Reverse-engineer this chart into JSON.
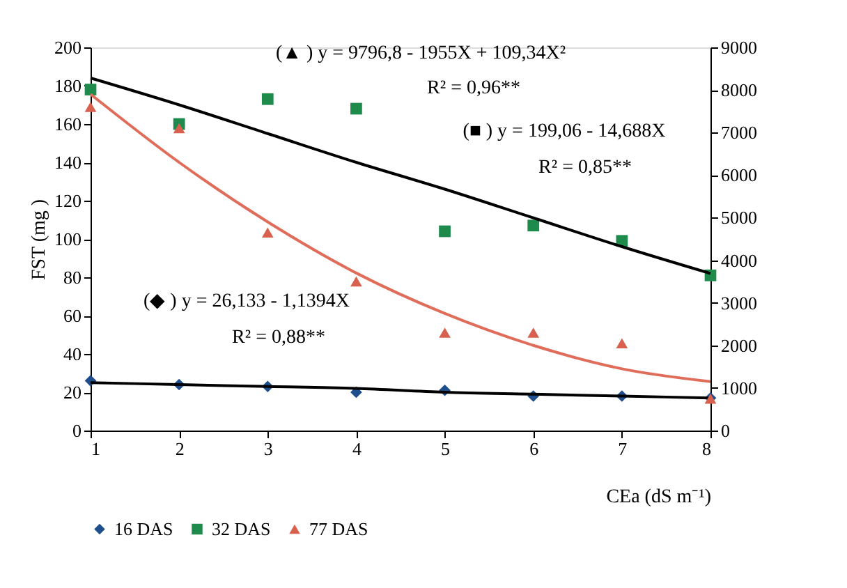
{
  "chart_data": {
    "type": "scatter",
    "ylabel": "FST (mg )",
    "xlabel": "CEa (dS m⁻¹)",
    "x": [
      1,
      2,
      3,
      4,
      5,
      6,
      7,
      8
    ],
    "xlim": [
      1,
      8
    ],
    "xticks": [
      1,
      2,
      3,
      4,
      5,
      6,
      7,
      8
    ],
    "ylim": [
      0,
      200
    ],
    "yticks": [
      0,
      20,
      40,
      60,
      80,
      100,
      120,
      140,
      160,
      180,
      200
    ],
    "y2lim": [
      0,
      9000
    ],
    "y2ticks": [
      0,
      1000,
      2000,
      3000,
      4000,
      5000,
      6000,
      7000,
      8000,
      9000
    ],
    "grid": false,
    "legend": "bottom left",
    "series": [
      {
        "type": "line",
        "color": "#000000",
        "marker": "none",
        "values": [
          25,
          24,
          23,
          22,
          20,
          19,
          18,
          17
        ]
      },
      {
        "type": "line",
        "color": "#000000",
        "marker": "none",
        "values": [
          184,
          170,
          155,
          140,
          126,
          111,
          96,
          82
        ]
      },
      {
        "type": "line",
        "axis": "y2",
        "color": "#e06c5a",
        "marker": "none",
        "values": [
          7900,
          6300,
          4900,
          3700,
          2750,
          2000,
          1450,
          1150
        ]
      },
      {
        "name": "16 DAS",
        "color": "#1f4e8c",
        "marker": "diamond",
        "values": [
          26,
          24,
          23,
          20,
          21,
          18,
          18,
          17
        ]
      },
      {
        "name": "32 DAS",
        "color": "#1e8a4c",
        "marker": "square",
        "values": [
          178,
          160,
          173,
          168,
          104,
          107,
          99,
          81
        ]
      },
      {
        "name": "77 DAS",
        "axis": "y2",
        "color": "#d9604e",
        "marker": "triangle",
        "values": [
          7600,
          7100,
          4650,
          3500,
          2300,
          2300,
          2050,
          750
        ]
      }
    ],
    "annotations": [
      "(▲ ) y = 9796,8 - 1955X + 109,34X²",
      "R² = 0,96**",
      "(■ ) y = 199,06 - 14,688X",
      "R² = 0,85**",
      "(◆ ) y = 26,133 - 1,1394X",
      "R² = 0,88**"
    ]
  }
}
